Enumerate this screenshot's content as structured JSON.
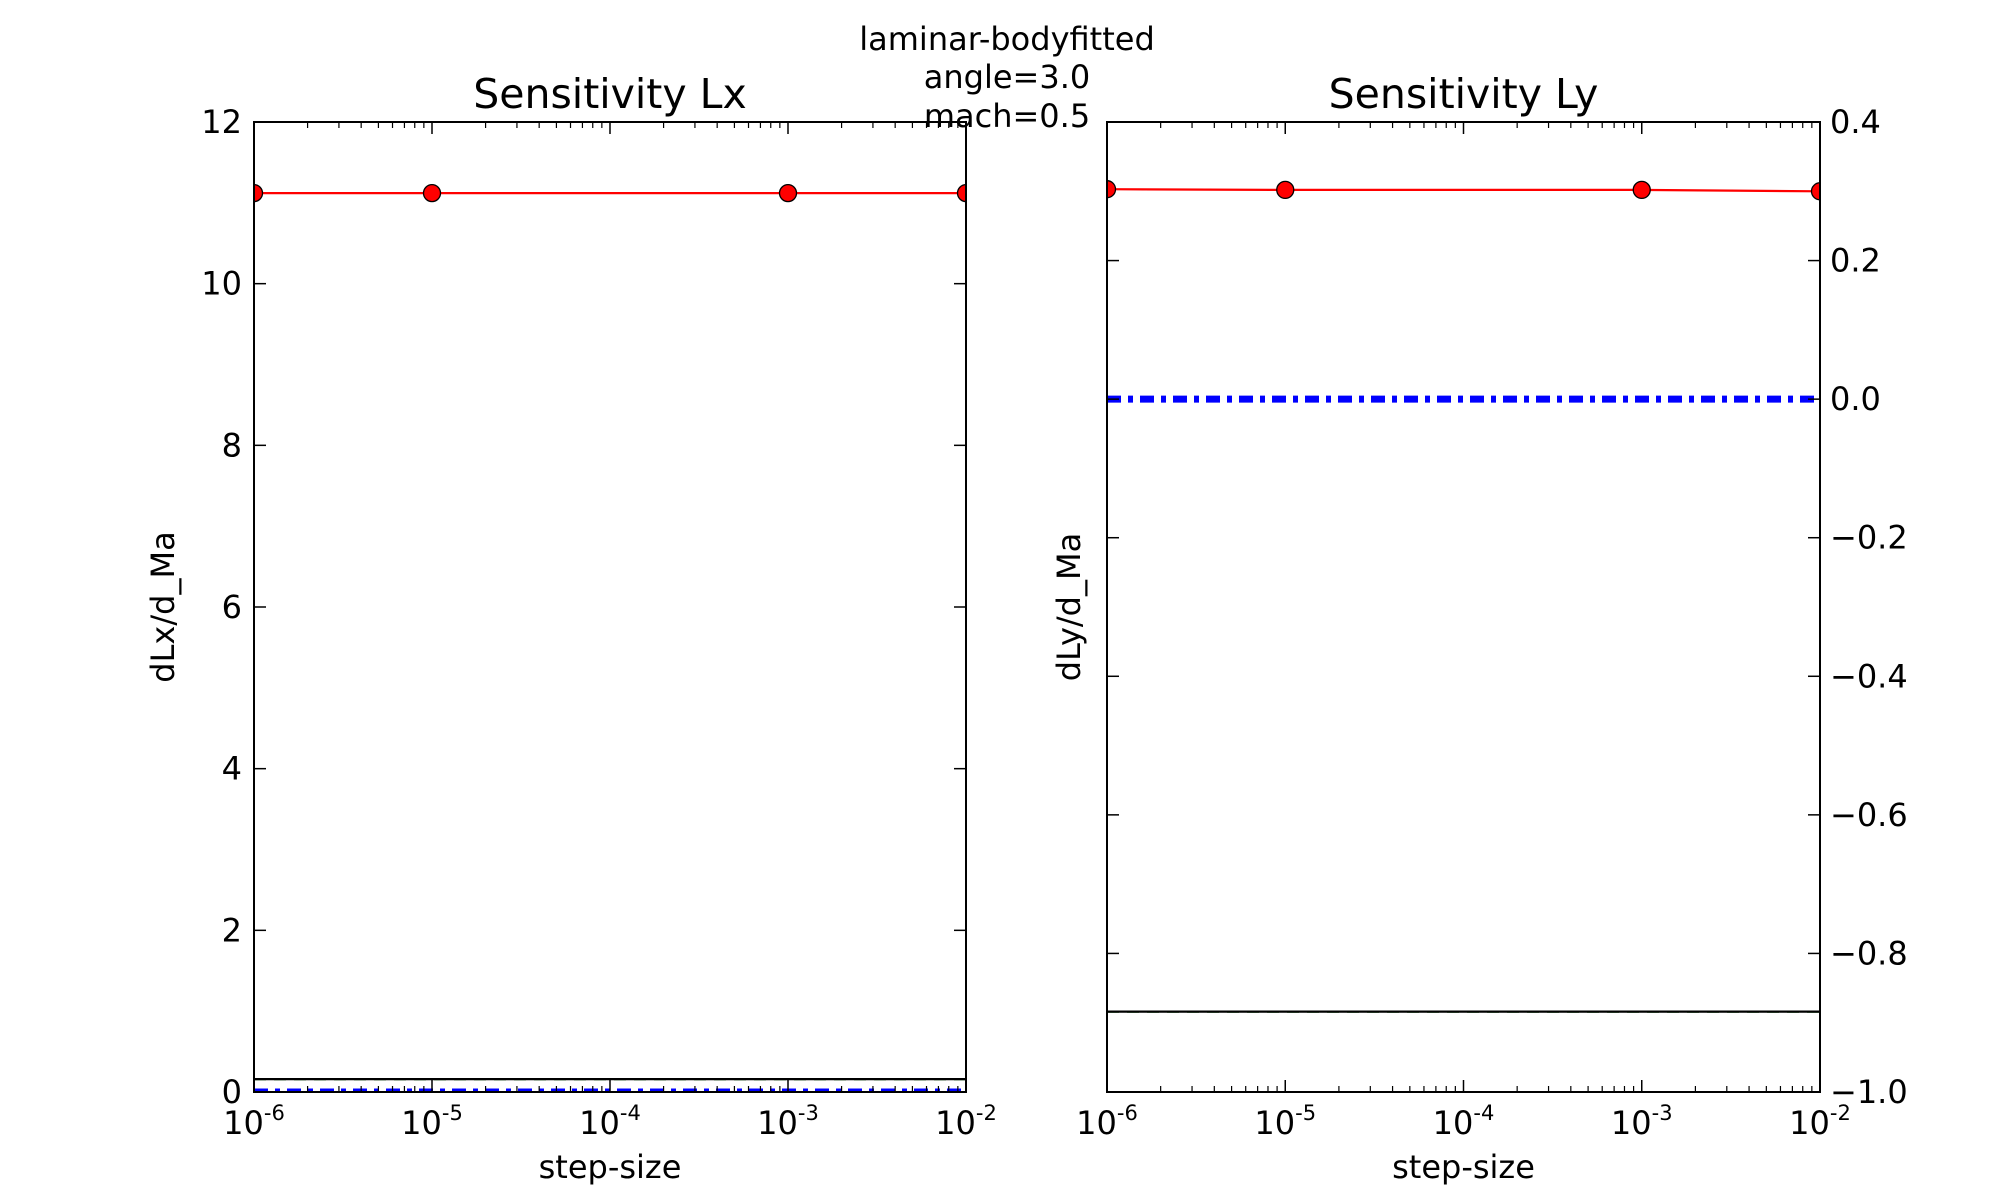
{
  "figure": {
    "suptitle_lines": [
      "laminar-bodyfitted",
      "angle=3.0",
      "mach=0.5"
    ]
  },
  "chart_data": [
    {
      "type": "line",
      "title": "Sensitivity Lx",
      "xlabel": "step-size",
      "ylabel": "dLx/d_Ma",
      "xscale": "log",
      "xlim": [
        1e-06,
        0.01
      ],
      "ylim": [
        0,
        12
      ],
      "yaxis_side": "left",
      "x_ticks": [
        "10^-6",
        "10^-5",
        "10^-4",
        "10^-3",
        "10^-2"
      ],
      "y_ticks": [
        "0",
        "2",
        "4",
        "6",
        "8",
        "10",
        "12"
      ],
      "grid": false,
      "legend": "none",
      "series": [
        {
          "x": [
            1e-06,
            1e-05,
            0.001,
            0.01
          ],
          "y": [
            11.12,
            11.12,
            11.12,
            11.12
          ],
          "color": "#ff0000",
          "style": "solid",
          "marker": "circle"
        },
        {
          "x": [
            1e-06,
            0.01
          ],
          "y": [
            0.0,
            0.0
          ],
          "color": "#0000ff",
          "style": "dashdot"
        },
        {
          "x": [
            1e-06,
            0.01
          ],
          "y": [
            0.16,
            0.16
          ],
          "color": "#008000",
          "style": "dashed"
        },
        {
          "x": [
            1e-06,
            0.01
          ],
          "y": [
            0.16,
            0.16
          ],
          "color": "#000000",
          "style": "solid"
        }
      ]
    },
    {
      "type": "line",
      "title": "Sensitivity Ly",
      "xlabel": "step-size",
      "ylabel": "dLy/d_Ma",
      "xscale": "log",
      "xlim": [
        1e-06,
        0.01
      ],
      "ylim": [
        -1.0,
        0.4
      ],
      "yaxis_side": "right",
      "x_ticks": [
        "10^-6",
        "10^-5",
        "10^-4",
        "10^-3",
        "10^-2"
      ],
      "y_ticks": [
        "0.4",
        "0.2",
        "0.0",
        "−0.2",
        "−0.4",
        "−0.6",
        "−0.8",
        "−1.0"
      ],
      "grid": false,
      "legend": "none",
      "series": [
        {
          "x": [
            1e-06,
            1e-05,
            0.001,
            0.01
          ],
          "y": [
            0.303,
            0.302,
            0.302,
            0.3
          ],
          "color": "#ff0000",
          "style": "solid",
          "marker": "circle"
        },
        {
          "x": [
            1e-06,
            0.01
          ],
          "y": [
            0.0,
            0.0
          ],
          "color": "#0000ff",
          "style": "dashdot"
        },
        {
          "x": [
            1e-06,
            0.01
          ],
          "y": [
            -0.884,
            -0.884
          ],
          "color": "#008000",
          "style": "dashed"
        },
        {
          "x": [
            1e-06,
            0.01
          ],
          "y": [
            -0.884,
            -0.884
          ],
          "color": "#000000",
          "style": "solid"
        }
      ]
    }
  ]
}
